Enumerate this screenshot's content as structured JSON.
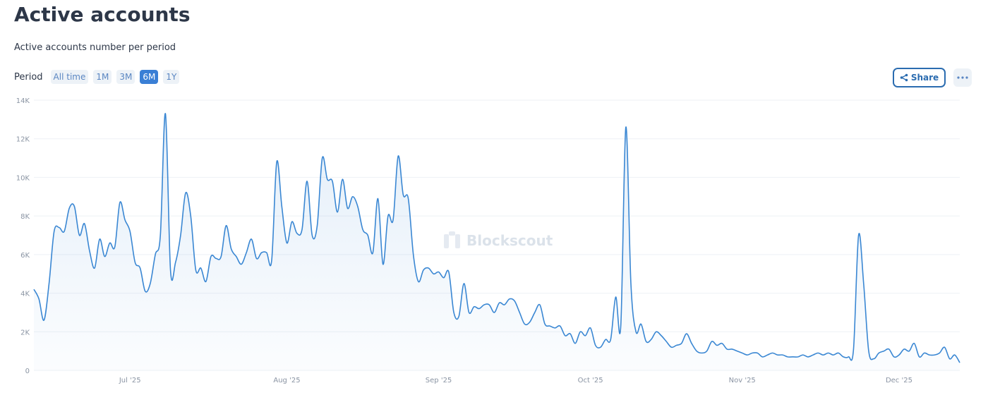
{
  "chart_data": {
    "type": "area",
    "title": "Active accounts",
    "subtitle": "Active accounts number per period",
    "series": [
      {
        "name": "Active accounts",
        "color": "#3a87d3",
        "values": [
          4200,
          3700,
          2600,
          4500,
          7200,
          7400,
          7200,
          8400,
          8500,
          7000,
          7600,
          6200,
          5300,
          6800,
          5900,
          6600,
          6400,
          8700,
          7800,
          7200,
          5600,
          5300,
          4100,
          4500,
          6000,
          7000,
          13300,
          5200,
          5600,
          7000,
          9200,
          8000,
          5200,
          5300,
          4600,
          5900,
          5800,
          5900,
          7500,
          6300,
          5900,
          5500,
          6100,
          6800,
          5800,
          6100,
          6100,
          5700,
          10800,
          8500,
          6600,
          7700,
          7100,
          7300,
          9800,
          7000,
          7500,
          11000,
          9900,
          9800,
          8200,
          9900,
          8400,
          9000,
          8500,
          7300,
          7000,
          6100,
          8900,
          5500,
          8000,
          7800,
          11100,
          9100,
          8900,
          6000,
          4600,
          5200,
          5300,
          5000,
          5100,
          4800,
          5100,
          3000,
          2800,
          4500,
          3000,
          3300,
          3200,
          3400,
          3400,
          3000,
          3500,
          3400,
          3700,
          3600,
          3000,
          2400,
          2500,
          3000,
          3400,
          2400,
          2300,
          2200,
          2300,
          1800,
          1900,
          1400,
          2000,
          1800,
          2200,
          1300,
          1200,
          1600,
          1600,
          3800,
          2300,
          12600,
          4500,
          2000,
          2400,
          1500,
          1600,
          2000,
          1800,
          1500,
          1200,
          1300,
          1400,
          1900,
          1400,
          1000,
          900,
          1000,
          1500,
          1300,
          1400,
          1100,
          1100,
          1000,
          900,
          800,
          900,
          900,
          700,
          800,
          900,
          800,
          800,
          700,
          700,
          700,
          800,
          700,
          800,
          900,
          800,
          900,
          800,
          900,
          700,
          700,
          1100,
          7000,
          4500,
          1000,
          600,
          900,
          1000,
          1100,
          700,
          800,
          1100,
          1000,
          1400,
          700,
          900,
          800,
          800,
          900,
          1200,
          600,
          800,
          400
        ]
      }
    ],
    "categories": [
      null,
      null,
      null,
      null,
      null,
      null,
      null,
      null,
      null,
      null,
      null,
      null,
      null,
      null,
      null,
      null,
      null,
      null,
      null,
      "Jul '25",
      null,
      null,
      null,
      null,
      null,
      null,
      null,
      null,
      null,
      null,
      null,
      null,
      null,
      null,
      null,
      null,
      null,
      null,
      null,
      null,
      null,
      null,
      null,
      null,
      null,
      null,
      null,
      null,
      null,
      null,
      "Aug '25",
      null,
      null,
      null,
      null,
      null,
      null,
      null,
      null,
      null,
      null,
      null,
      null,
      null,
      null,
      null,
      null,
      null,
      null,
      null,
      null,
      null,
      null,
      null,
      null,
      null,
      null,
      null,
      null,
      null,
      "Sep '25",
      null,
      null,
      null,
      null,
      null,
      null,
      null,
      null,
      null,
      null,
      null,
      null,
      null,
      null,
      null,
      null,
      null,
      null,
      null,
      null,
      null,
      null,
      null,
      null,
      null,
      null,
      null,
      null,
      null,
      "Oct '25",
      null,
      null,
      null,
      null,
      null,
      null,
      null,
      null,
      null,
      null,
      null,
      null,
      null,
      null,
      null,
      null,
      null,
      null,
      null,
      null,
      null,
      null,
      null,
      null,
      null,
      null,
      null,
      null,
      null,
      "Nov '25",
      null,
      null,
      null,
      null,
      null,
      null,
      null,
      null,
      null,
      null,
      null,
      null,
      null,
      null,
      null,
      null,
      null,
      null,
      null,
      null,
      null,
      null,
      null,
      null,
      null,
      null,
      null,
      null,
      null,
      null,
      "Dec '25",
      null,
      null,
      null,
      null,
      null,
      null,
      null,
      null,
      null,
      null,
      null,
      null
    ],
    "ylim": [
      0,
      14000
    ],
    "yticks": [
      0,
      {
        "value": 2000,
        "label": "2K"
      },
      {
        "value": 4000,
        "label": "4K"
      },
      {
        "value": 6000,
        "label": "6K"
      },
      {
        "value": 8000,
        "label": "8K"
      },
      {
        "value": 10000,
        "label": "10K"
      },
      {
        "value": 12000,
        "label": "12K"
      },
      {
        "value": 14000,
        "label": "14K"
      }
    ],
    "grid": true,
    "watermark": "Blockscout"
  },
  "period": {
    "label": "Period",
    "options": [
      "All time",
      "1M",
      "3M",
      "6M",
      "1Y"
    ],
    "active": 3
  },
  "share": "Share"
}
